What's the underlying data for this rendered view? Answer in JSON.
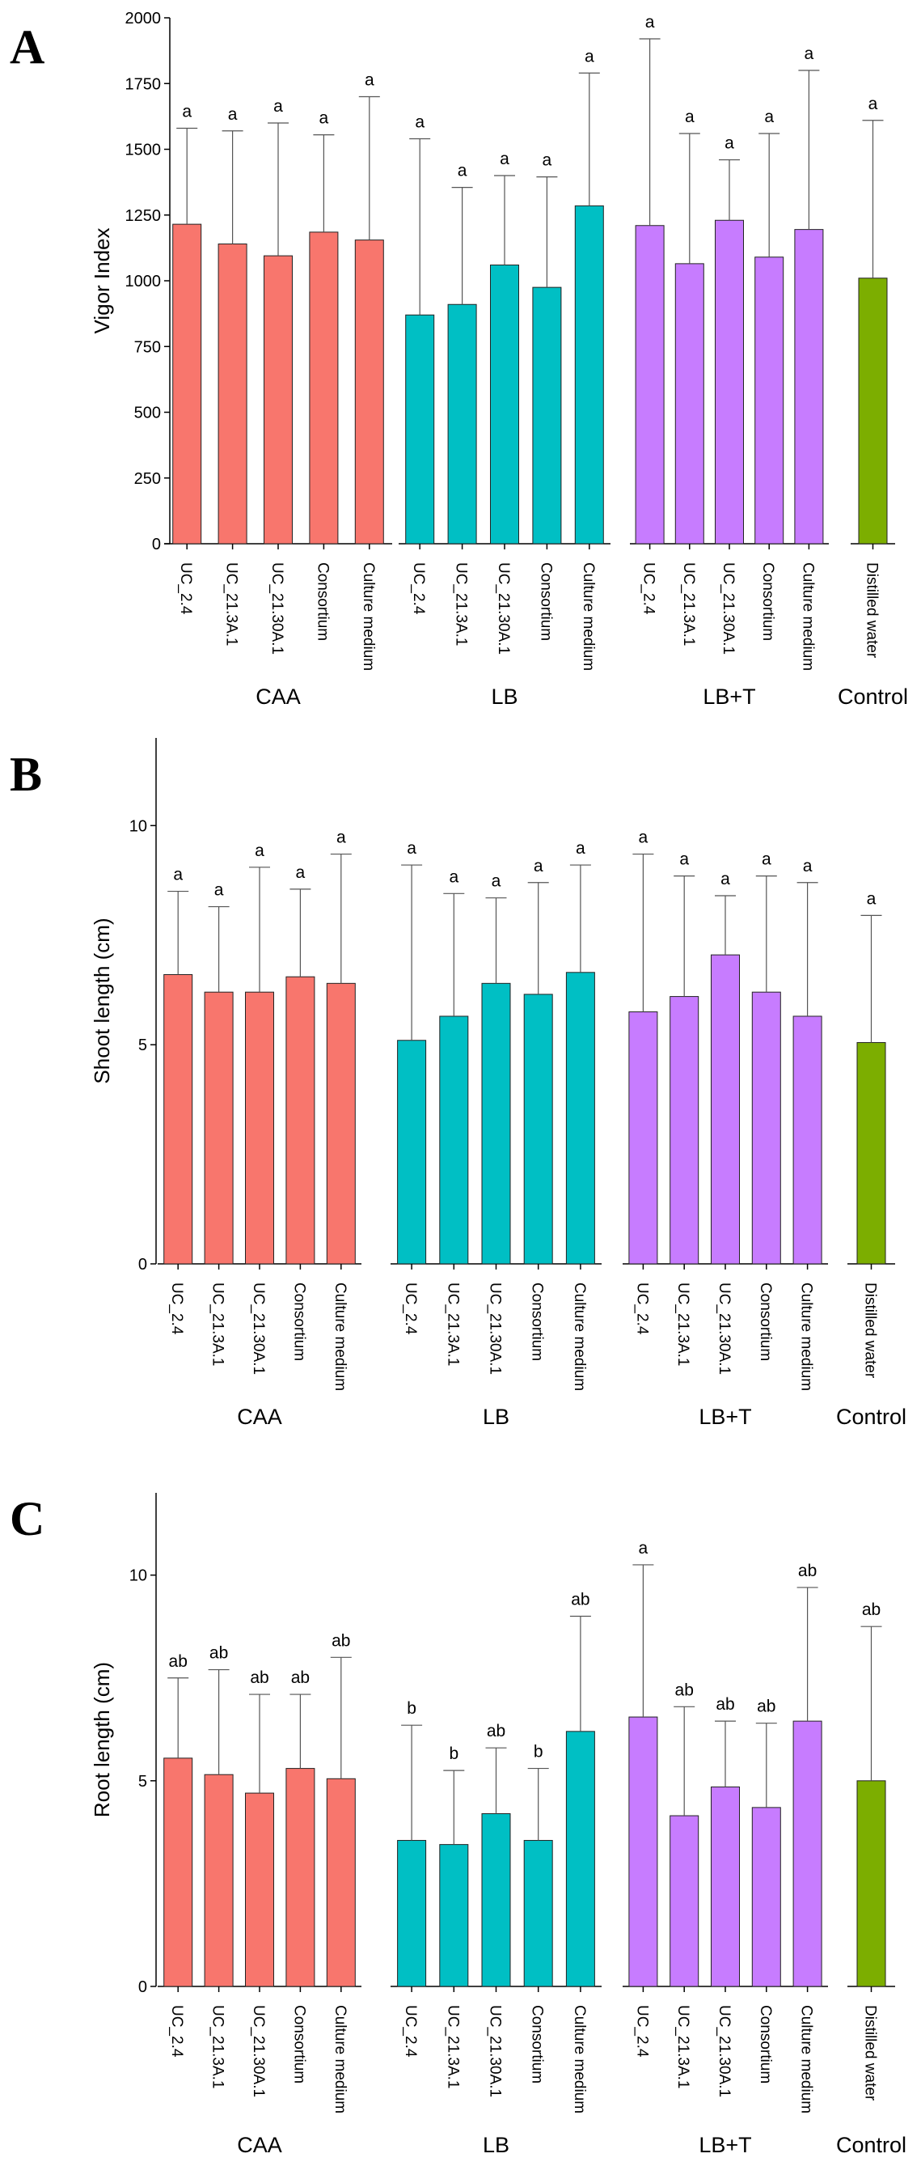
{
  "colors": {
    "CAA": "#F8766D",
    "LB": "#00BFC4",
    "LB+T": "#C77CFF",
    "Control": "#7CAE00"
  },
  "chart_data": [
    {
      "panel": "A",
      "type": "bar",
      "ylabel": "Vigor Index",
      "ylim": [
        0,
        2000
      ],
      "yticks": [
        0,
        250,
        500,
        750,
        1000,
        1250,
        1500,
        1750,
        2000
      ],
      "groups": [
        {
          "label": "CAA",
          "categories": [
            "UC_2.4",
            "UC_21.3A.1",
            "UC_21.30A.1",
            "Consortium",
            "Culture medium"
          ],
          "values": [
            1215,
            1140,
            1095,
            1185,
            1155
          ],
          "error_upper": [
            1580,
            1570,
            1600,
            1555,
            1700
          ],
          "letters": [
            "a",
            "a",
            "a",
            "a",
            "a"
          ]
        },
        {
          "label": "LB",
          "categories": [
            "UC_2.4",
            "UC_21.3A.1",
            "UC_21.30A.1",
            "Consortium",
            "Culture medium"
          ],
          "values": [
            870,
            910,
            1060,
            975,
            1285
          ],
          "error_upper": [
            1540,
            1355,
            1400,
            1395,
            1790
          ],
          "letters": [
            "a",
            "a",
            "a",
            "a",
            "a"
          ]
        },
        {
          "label": "LB+T",
          "categories": [
            "UC_2.4",
            "UC_21.3A.1",
            "UC_21.30A.1",
            "Consortium",
            "Culture medium"
          ],
          "values": [
            1210,
            1065,
            1230,
            1090,
            1195
          ],
          "error_upper": [
            1920,
            1560,
            1460,
            1560,
            1800
          ],
          "letters": [
            "a",
            "a",
            "a",
            "a",
            "a"
          ]
        },
        {
          "label": "Control",
          "categories": [
            "Distilled water"
          ],
          "values": [
            1010
          ],
          "error_upper": [
            1610
          ],
          "letters": [
            "a"
          ]
        }
      ]
    },
    {
      "panel": "B",
      "type": "bar",
      "ylabel": "Shoot length (cm)",
      "ylim": [
        0,
        12
      ],
      "yticks": [
        0,
        5,
        10
      ],
      "groups": [
        {
          "label": "CAA",
          "categories": [
            "UC_2.4",
            "UC_21.3A.1",
            "UC_21.30A.1",
            "Consortium",
            "Culture medium"
          ],
          "values": [
            6.6,
            6.2,
            6.2,
            6.55,
            6.4
          ],
          "error_upper": [
            8.5,
            8.15,
            9.05,
            8.55,
            9.35
          ],
          "letters": [
            "a",
            "a",
            "a",
            "a",
            "a"
          ]
        },
        {
          "label": "LB",
          "categories": [
            "UC_2.4",
            "UC_21.3A.1",
            "UC_21.30A.1",
            "Consortium",
            "Culture medium"
          ],
          "values": [
            5.1,
            5.65,
            6.4,
            6.15,
            6.65
          ],
          "error_upper": [
            9.1,
            8.45,
            8.35,
            8.7,
            9.1
          ],
          "letters": [
            "a",
            "a",
            "a",
            "a",
            "a"
          ]
        },
        {
          "label": "LB+T",
          "categories": [
            "UC_2.4",
            "UC_21.3A.1",
            "UC_21.30A.1",
            "Consortium",
            "Culture medium"
          ],
          "values": [
            5.75,
            6.1,
            7.05,
            6.2,
            5.65
          ],
          "error_upper": [
            9.35,
            8.85,
            8.4,
            8.85,
            8.7
          ],
          "letters": [
            "a",
            "a",
            "a",
            "a",
            "a"
          ]
        },
        {
          "label": "Control",
          "categories": [
            "Distilled water"
          ],
          "values": [
            5.05
          ],
          "error_upper": [
            7.95
          ],
          "letters": [
            "a"
          ]
        }
      ]
    },
    {
      "panel": "C",
      "type": "bar",
      "ylabel": "Root length (cm)",
      "ylim": [
        0,
        12
      ],
      "yticks": [
        0,
        5,
        10
      ],
      "groups": [
        {
          "label": "CAA",
          "categories": [
            "UC_2.4",
            "UC_21.3A.1",
            "UC_21.30A.1",
            "Consortium",
            "Culture medium"
          ],
          "values": [
            5.55,
            5.15,
            4.7,
            5.3,
            5.05
          ],
          "error_upper": [
            7.5,
            7.7,
            7.1,
            7.1,
            8.0
          ],
          "letters": [
            "ab",
            "ab",
            "ab",
            "ab",
            "ab"
          ]
        },
        {
          "label": "LB",
          "categories": [
            "UC_2.4",
            "UC_21.3A.1",
            "UC_21.30A.1",
            "Consortium",
            "Culture medium"
          ],
          "values": [
            3.55,
            3.45,
            4.2,
            3.55,
            6.2
          ],
          "error_upper": [
            6.35,
            5.25,
            5.8,
            5.3,
            9.0
          ],
          "letters": [
            "b",
            "b",
            "ab",
            "b",
            "ab"
          ]
        },
        {
          "label": "LB+T",
          "categories": [
            "UC_2.4",
            "UC_21.3A.1",
            "UC_21.30A.1",
            "Consortium",
            "Culture medium"
          ],
          "values": [
            6.55,
            4.15,
            4.85,
            4.35,
            6.45
          ],
          "error_upper": [
            10.25,
            6.8,
            6.45,
            6.4,
            9.7
          ],
          "letters": [
            "a",
            "ab",
            "ab",
            "ab",
            "ab"
          ]
        },
        {
          "label": "Control",
          "categories": [
            "Distilled water"
          ],
          "values": [
            5.0
          ],
          "error_upper": [
            8.75
          ],
          "letters": [
            "ab"
          ]
        }
      ]
    }
  ]
}
